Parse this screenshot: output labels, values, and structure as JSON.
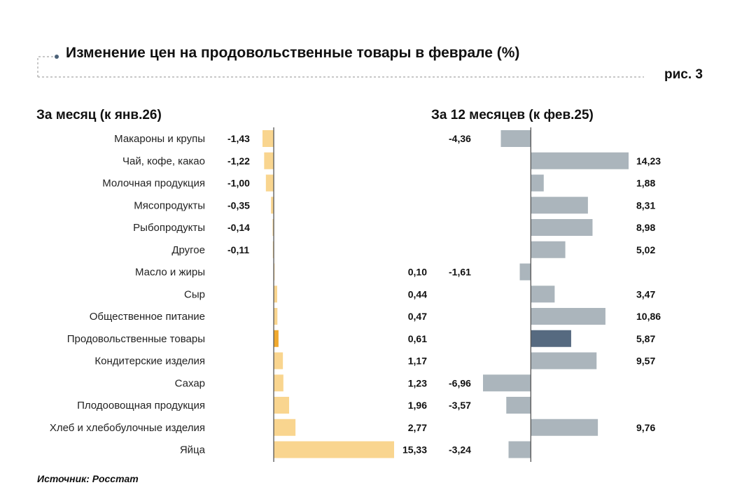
{
  "header": {
    "title": "Изменение цен на продовольственные товары в феврале (%)",
    "figure_label": "рис. 3"
  },
  "source": "Источник: Росстат",
  "colors": {
    "month_bar": "#F9D58F",
    "month_highlight": "#F0A92E",
    "year_bar": "#ABB5BC",
    "year_highlight": "#566A80",
    "axis": "#555555",
    "frame": "#A7A7A7",
    "dot": "#4C6178"
  },
  "chart_data": [
    {
      "type": "bar",
      "orientation": "horizontal",
      "title": "За месяц (к янв.26)",
      "categories": [
        "Макароны и крупы",
        "Чай, кофе, какао",
        "Молочная продукция",
        "Мясопродукты",
        "Рыбопродукты",
        "Другое",
        "Масло и жиры",
        "Сыр",
        "Общественное питание",
        "Продовольственные товары",
        "Кондитерские изделия",
        "Сахар",
        "Плодоовощная продукция",
        "Хлеб и хлебобулочные изделия",
        "Яйца"
      ],
      "values": [
        -1.43,
        -1.22,
        -1.0,
        -0.35,
        -0.14,
        -0.11,
        0.1,
        0.44,
        0.47,
        0.61,
        1.17,
        1.23,
        1.96,
        2.77,
        15.33
      ],
      "labels": [
        "-1,43",
        "-1,22",
        "-1,00",
        "-0,35",
        "-0,14",
        "-0,11",
        "0,10",
        "0,44",
        "0,47",
        "0,61",
        "1,17",
        "1,23",
        "1,96",
        "2,77",
        "15,33"
      ],
      "highlight": "Продовольственные товары",
      "xlim": [
        -1.43,
        15.33
      ]
    },
    {
      "type": "bar",
      "orientation": "horizontal",
      "title": "За 12 месяцев (к фев.25)",
      "categories": [
        "Макароны и крупы",
        "Чай, кофе, какао",
        "Молочная продукция",
        "Мясопродукты",
        "Рыбопродукты",
        "Другое",
        "Масло и жиры",
        "Сыр",
        "Общественное питание",
        "Продовольственные товары",
        "Кондитерские изделия",
        "Сахар",
        "Плодоовощная продукция",
        "Хлеб и хлебобулочные изделия",
        "Яйца"
      ],
      "values": [
        -4.36,
        14.23,
        1.88,
        8.31,
        8.98,
        5.02,
        -1.61,
        3.47,
        10.86,
        5.87,
        9.57,
        -6.96,
        -3.57,
        9.76,
        -3.24
      ],
      "labels": [
        "-4,36",
        "14,23",
        "1,88",
        "8,31",
        "8,98",
        "5,02",
        "-1,61",
        "3,47",
        "10,86",
        "5,87",
        "9,57",
        "-6,96",
        "-3,57",
        "9,76",
        "-3,24"
      ],
      "highlight": "Продовольственные товары",
      "xlim": [
        -6.96,
        14.23
      ]
    }
  ]
}
